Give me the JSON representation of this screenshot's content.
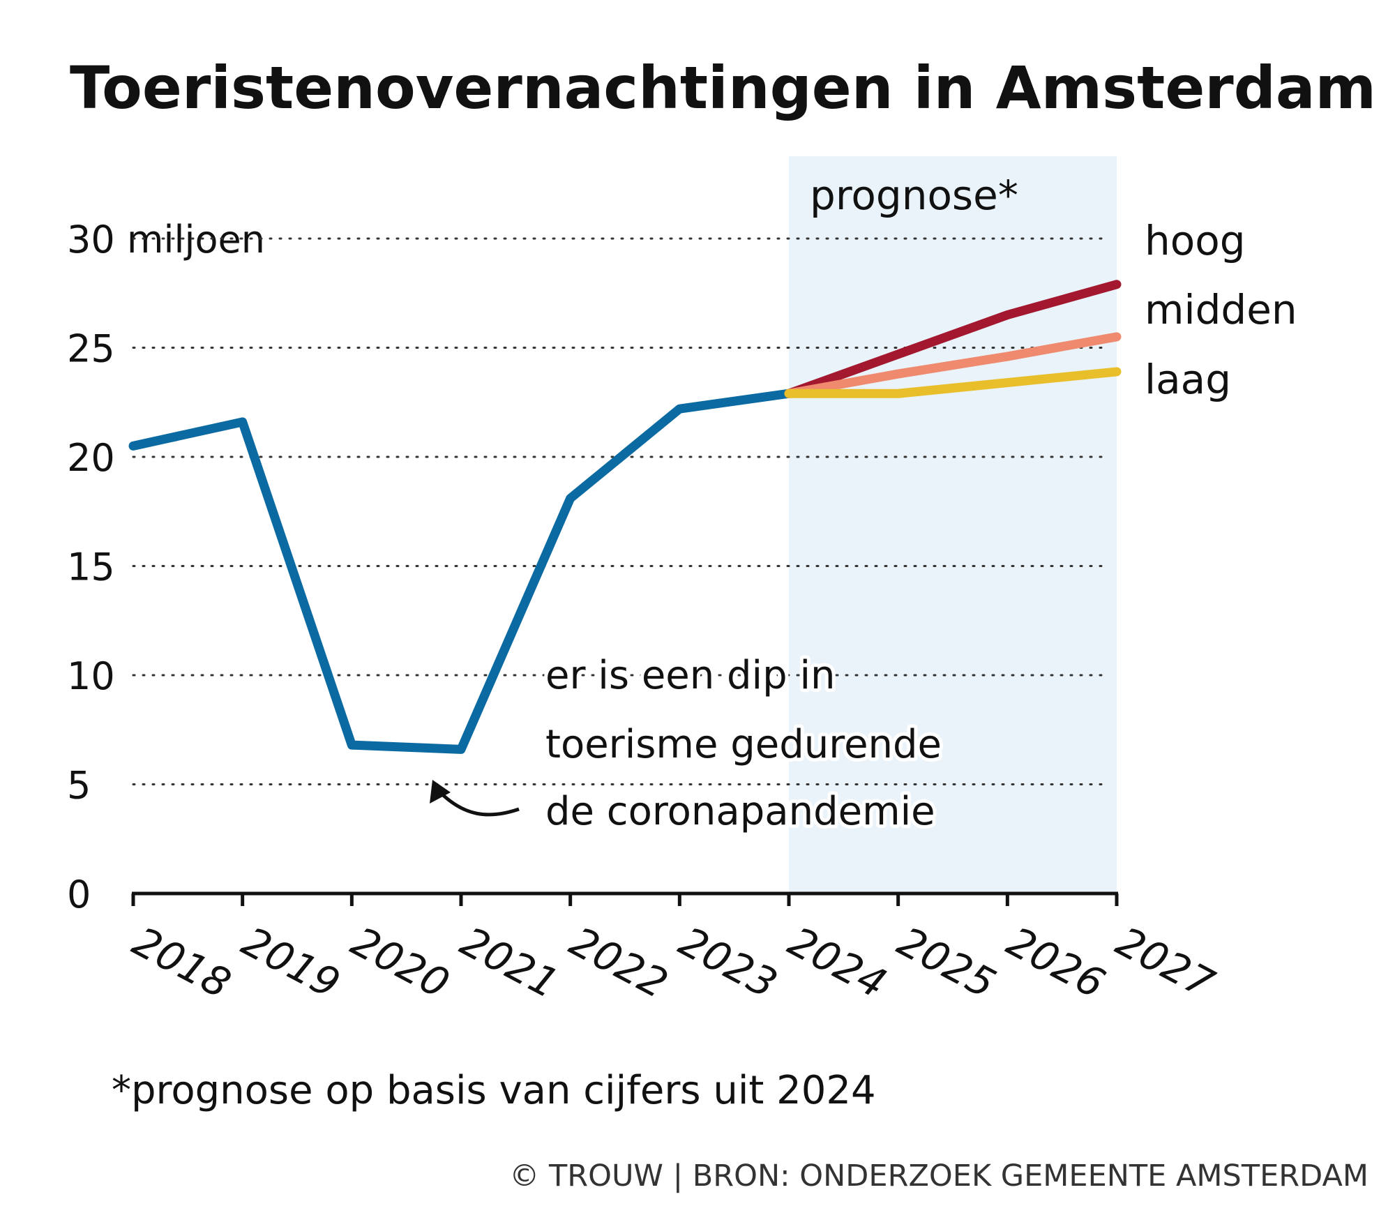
{
  "chart_data": {
    "type": "line",
    "title": "Toeristenovernachtingen in Amsterdam",
    "categories": [
      "2018",
      "2019",
      "2020",
      "2021",
      "2022",
      "2023",
      "2024",
      "2025",
      "2026",
      "2027"
    ],
    "series": [
      {
        "color": "#0a6aa1",
        "values": [
          20.5,
          21.6,
          6.8,
          6.6,
          18.1,
          22.2,
          22.9,
          null,
          null,
          null
        ]
      },
      {
        "name": "hoog",
        "color": "#a3182f",
        "values": [
          null,
          null,
          null,
          null,
          null,
          null,
          22.9,
          24.7,
          26.5,
          27.9
        ]
      },
      {
        "name": "midden",
        "color": "#ef8a6e",
        "values": [
          null,
          null,
          null,
          null,
          null,
          null,
          22.9,
          23.8,
          24.6,
          25.5
        ]
      },
      {
        "name": "laag",
        "color": "#e8be2a",
        "values": [
          null,
          null,
          null,
          null,
          null,
          null,
          22.9,
          22.9,
          23.4,
          23.9
        ]
      }
    ],
    "ylim": [
      0,
      30
    ],
    "yticks": [
      0,
      5,
      10,
      15,
      20,
      25,
      {
        "value": 30,
        "label": "30 miljoen"
      }
    ],
    "grid": true,
    "forecast_label": "prognose*",
    "annotation": [
      "er is een dip in",
      "toerisme gedurende",
      "de coronapandemie"
    ],
    "footnote": "*prognose op basis van cijfers uit 2024",
    "source": "© TROUW | BRON: ONDERZOEK GEMEENTE AMSTERDAM"
  }
}
